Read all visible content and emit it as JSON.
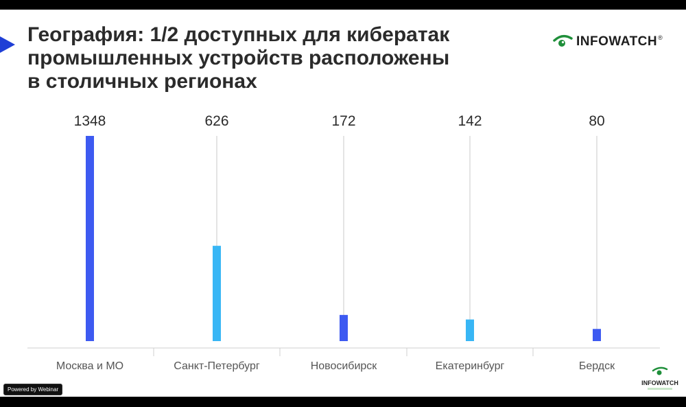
{
  "slide": {
    "title": "География: 1/2 доступных для кибератак промышленных устройств расположены в столичных регионах"
  },
  "logo": {
    "text": "INFOWATCH",
    "registered": "®",
    "accent_color": "#1f8f3a"
  },
  "overlay": {
    "badge": "Powered by Webinar"
  },
  "colors": {
    "bar_dark": "#3d5af1",
    "bar_light": "#38b6f5",
    "marker": "#1f3fd6"
  },
  "chart_data": {
    "type": "bar",
    "categories": [
      "Москва и МО",
      "Санкт-Петербург",
      "Новосибирск",
      "Екатеринбург",
      "Бердск"
    ],
    "values": [
      1348,
      626,
      172,
      142,
      80
    ],
    "bar_colors": [
      "#3d5af1",
      "#38b6f5",
      "#3d5af1",
      "#38b6f5",
      "#3d5af1"
    ],
    "title": "",
    "xlabel": "",
    "ylabel": "",
    "ylim": [
      0,
      1348
    ],
    "grid": false,
    "data_labels": "top"
  }
}
